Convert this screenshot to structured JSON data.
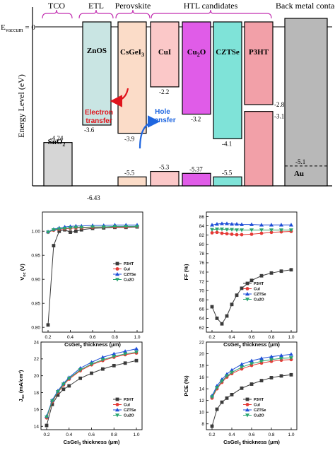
{
  "energy_diagram": {
    "vacuum_label": "E",
    "vacuum_sub": "vaccum",
    "vacuum_value": "= 0",
    "ylabel": "Energy Level (eV)",
    "groups": [
      "TCO",
      "ETL",
      "Perovskite",
      "HTL candidates",
      "Back metal contact"
    ],
    "layers": [
      {
        "name": "SnO",
        "sub": "2",
        "cb": -4.24,
        "vb": null,
        "cb_label": "-4.24",
        "vb_label": "",
        "color": "#d6d6d6"
      },
      {
        "name": "ZnOS",
        "sub": "",
        "cb": -3.6,
        "vb": -6.43,
        "cb_label": "-3.6",
        "vb_label": "-6.43",
        "color": "#c9e5e3"
      },
      {
        "name": "CsGeI",
        "sub": "3",
        "cb": -3.9,
        "vb": -5.5,
        "cb_label": "-3.9",
        "vb_label": "-5.5",
        "color": "#fbdcc8"
      },
      {
        "name": "CuI",
        "sub": "",
        "cb": -2.2,
        "vb": -5.3,
        "cb_label": "-2.2",
        "vb_label": "-5.3",
        "color": "#fbc8c8"
      },
      {
        "name": "Cu",
        "sub": "2",
        "name2": "O",
        "cb": -3.2,
        "vb": -5.37,
        "cb_label": "-3.2",
        "vb_label": "-5.37",
        "color": "#e05ce8"
      },
      {
        "name": "CZTSe",
        "sub": "",
        "cb": -4.1,
        "vb": -5.5,
        "cb_label": "-4.1",
        "vb_label": "-5.5",
        "color": "#7fe3d8"
      },
      {
        "name": "P3HT",
        "sub": "",
        "cb": -2.85,
        "vb": -3.1,
        "cb_label": "-2.85",
        "vb_label": "-3.1",
        "color": "#f2a0a8"
      },
      {
        "name": "Au",
        "sub": "",
        "cb": -5.1,
        "vb": null,
        "cb_label": "-5.1",
        "vb_label": "",
        "color": "#b8b8b8"
      }
    ],
    "electron_transfer": [
      "Electron",
      "transfer"
    ],
    "hole_transfer": [
      "Hole",
      "transfer"
    ]
  },
  "chart_data": [
    {
      "type": "line",
      "ylabel": "V",
      "ylabel_sub": "oc",
      "ylabel_unit": " (V)",
      "xlabel": "CsGeI",
      "xlabel_sub": "3",
      "xlabel_unit": " thickness (μm)",
      "x": [
        0.2,
        0.25,
        0.3,
        0.35,
        0.4,
        0.45,
        0.5,
        0.6,
        0.7,
        0.8,
        0.9,
        1.0
      ],
      "xlim": [
        0.2,
        1.0
      ],
      "ylim": [
        0.79,
        1.04
      ],
      "xticks": [
        "0.2",
        "0.4",
        "0.6",
        "0.8",
        "1.0"
      ],
      "yticks": [
        "0.80",
        "0.85",
        "0.90",
        "0.95",
        "1.00"
      ],
      "legend_position": "center-right",
      "series": [
        {
          "name": "P3HT",
          "color": "#3a3a3a",
          "marker": "square",
          "values": [
            0.805,
            0.97,
            1.0,
            1.003,
            0.998,
            1.0,
            1.003,
            1.006,
            1.007,
            1.008,
            1.008,
            1.009
          ]
        },
        {
          "name": "CuI",
          "color": "#e53935",
          "marker": "circle",
          "values": [
            0.998,
            1.002,
            1.004,
            1.005,
            1.006,
            1.007,
            1.007,
            1.008,
            1.009,
            1.009,
            1.009,
            1.01
          ]
        },
        {
          "name": "CZTSe",
          "color": "#1f4fd8",
          "marker": "triangle",
          "values": [
            0.999,
            1.004,
            1.007,
            1.009,
            1.01,
            1.011,
            1.011,
            1.012,
            1.012,
            1.013,
            1.013,
            1.013
          ]
        },
        {
          "name": "Cu2O",
          "color": "#2aa56f",
          "marker": "triangle-down",
          "values": [
            0.998,
            1.003,
            1.005,
            1.006,
            1.007,
            1.008,
            1.008,
            1.009,
            1.009,
            1.01,
            1.01,
            1.01
          ]
        }
      ]
    },
    {
      "type": "line",
      "ylabel": "FF (%)",
      "ylabel_sub": "",
      "ylabel_unit": "",
      "xlabel": "CsGeI",
      "xlabel_sub": "3",
      "xlabel_unit": " thickness (μm)",
      "x": [
        0.2,
        0.25,
        0.3,
        0.35,
        0.4,
        0.45,
        0.5,
        0.6,
        0.7,
        0.8,
        0.9,
        1.0
      ],
      "xlim": [
        0.2,
        1.0
      ],
      "ylim": [
        61,
        87
      ],
      "xticks": [
        "0.2",
        "0.4",
        "0.6",
        "0.8",
        "1.0"
      ],
      "yticks": [
        "62",
        "64",
        "66",
        "68",
        "70",
        "72",
        "74",
        "76",
        "78",
        "80",
        "82",
        "84",
        "86"
      ],
      "legend_position": "bottom-right",
      "series": [
        {
          "name": "P3HT",
          "color": "#3a3a3a",
          "marker": "square",
          "values": [
            66.5,
            64.0,
            62.8,
            64.5,
            67.0,
            69.0,
            70.5,
            72.2,
            73.2,
            73.8,
            74.2,
            74.5
          ]
        },
        {
          "name": "CuI",
          "color": "#e53935",
          "marker": "circle",
          "values": [
            82.5,
            82.6,
            82.4,
            82.3,
            82.2,
            82.1,
            82.1,
            82.2,
            82.4,
            82.6,
            82.7,
            82.8
          ]
        },
        {
          "name": "CZTSe",
          "color": "#1f4fd8",
          "marker": "triangle",
          "values": [
            84.2,
            84.4,
            84.5,
            84.5,
            84.4,
            84.4,
            84.3,
            84.3,
            84.2,
            84.2,
            84.2,
            84.2
          ]
        },
        {
          "name": "Cu2O",
          "color": "#2aa56f",
          "marker": "triangle-down",
          "values": [
            83.2,
            83.3,
            83.3,
            83.2,
            83.2,
            83.1,
            83.1,
            83.1,
            83.1,
            83.1,
            83.1,
            83.1
          ]
        }
      ]
    },
    {
      "type": "line",
      "ylabel": "J",
      "ylabel_sub": "sc",
      "ylabel_unit": " (mA/cm²)",
      "xlabel": "CsGeI",
      "xlabel_sub": "3",
      "xlabel_unit": " thickness (μm)",
      "x": [
        0.2,
        0.25,
        0.3,
        0.35,
        0.4,
        0.5,
        0.6,
        0.7,
        0.8,
        0.9,
        1.0
      ],
      "xlim": [
        0.2,
        1.0
      ],
      "ylim": [
        13.6,
        24
      ],
      "xticks": [
        "0.2",
        "0.4",
        "0.6",
        "0.8",
        "1.0"
      ],
      "yticks": [
        "14",
        "16",
        "18",
        "20",
        "22",
        "24"
      ],
      "legend_position": "bottom-right",
      "series": [
        {
          "name": "P3HT",
          "color": "#3a3a3a",
          "marker": "square",
          "values": [
            14.1,
            16.6,
            17.7,
            18.4,
            18.8,
            19.7,
            20.3,
            20.8,
            21.2,
            21.5,
            21.8
          ]
        },
        {
          "name": "CuI",
          "color": "#e53935",
          "marker": "circle",
          "values": [
            15.0,
            16.9,
            18.0,
            18.9,
            19.6,
            20.6,
            21.3,
            21.8,
            22.2,
            22.5,
            22.7
          ]
        },
        {
          "name": "CZTSe",
          "color": "#1f4fd8",
          "marker": "triangle",
          "values": [
            15.2,
            17.1,
            18.2,
            19.1,
            19.8,
            20.9,
            21.6,
            22.2,
            22.6,
            22.9,
            23.2
          ]
        },
        {
          "name": "Cu2O",
          "color": "#2aa56f",
          "marker": "triangle-down",
          "values": [
            15.1,
            17.0,
            18.1,
            19.0,
            19.7,
            20.7,
            21.4,
            21.9,
            22.3,
            22.6,
            22.8
          ]
        }
      ]
    },
    {
      "type": "line",
      "ylabel": "PCE (%)",
      "ylabel_sub": "",
      "ylabel_unit": "",
      "xlabel": "CsGeI",
      "xlabel_sub": "3",
      "xlabel_unit": " thickness (μm)",
      "x": [
        0.2,
        0.25,
        0.3,
        0.35,
        0.4,
        0.5,
        0.6,
        0.7,
        0.8,
        0.9,
        1.0
      ],
      "xlim": [
        0.2,
        1.0
      ],
      "ylim": [
        7,
        22
      ],
      "xticks": [
        "0.2",
        "0.4",
        "0.6",
        "0.8",
        "1.0"
      ],
      "yticks": [
        "8",
        "10",
        "12",
        "14",
        "16",
        "18",
        "20",
        "22"
      ],
      "legend_position": "bottom-right",
      "series": [
        {
          "name": "P3HT",
          "color": "#3a3a3a",
          "marker": "square",
          "values": [
            7.6,
            10.5,
            11.7,
            12.4,
            13.0,
            14.1,
            14.8,
            15.4,
            15.9,
            16.2,
            16.4
          ]
        },
        {
          "name": "CuI",
          "color": "#e53935",
          "marker": "circle",
          "values": [
            12.4,
            14.0,
            15.1,
            16.0,
            16.6,
            17.4,
            18.0,
            18.4,
            18.7,
            18.9,
            19.0
          ]
        },
        {
          "name": "CZTSe",
          "color": "#1f4fd8",
          "marker": "triangle",
          "values": [
            12.8,
            14.5,
            15.6,
            16.5,
            17.2,
            18.2,
            18.8,
            19.2,
            19.5,
            19.7,
            19.9
          ]
        },
        {
          "name": "Cu2O",
          "color": "#2aa56f",
          "marker": "triangle-down",
          "values": [
            12.6,
            14.2,
            15.3,
            16.2,
            16.8,
            17.7,
            18.3,
            18.7,
            19.0,
            19.2,
            19.3
          ]
        }
      ]
    }
  ]
}
